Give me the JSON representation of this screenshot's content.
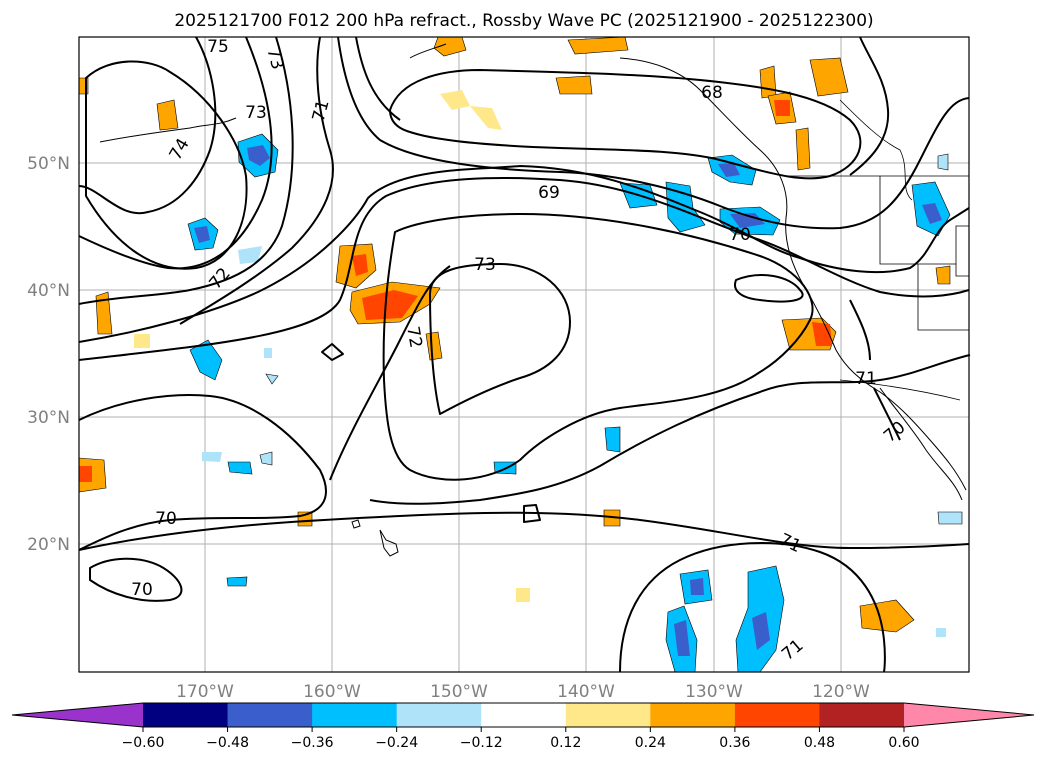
{
  "title": "2025121700 F012 200 hPa refract., Rossby Wave PC (2025121900 - 2025122300)",
  "lat_labels": [
    "50°N",
    "40°N",
    "30°N",
    "20°N"
  ],
  "lon_labels": [
    "170°W",
    "160°W",
    "150°W",
    "140°W",
    "130°W",
    "120°W"
  ],
  "contour_labels": [
    "75",
    "73",
    "74",
    "73",
    "71",
    "69",
    "68",
    "73",
    "72",
    "72",
    "70",
    "71",
    "70",
    "70",
    "71",
    "70",
    "71"
  ],
  "colorbar": {
    "ticks": [
      "−0.60",
      "−0.48",
      "−0.36",
      "−0.24",
      "−0.12",
      "0.12",
      "0.24",
      "0.36",
      "0.48",
      "0.60"
    ],
    "colors": [
      "#9933cc",
      "#000080",
      "#3a5fcd",
      "#00bfff",
      "#aee3fa",
      "#ffffff",
      "#ffe88a",
      "#ffa500",
      "#ff4500",
      "#b22222",
      "#ff88aa"
    ]
  },
  "field_colors": {
    "neg_light": "#aee3fa",
    "neg_mid": "#00bfff",
    "neg_dark": "#3a5fcd",
    "pos_light": "#ffe88a",
    "pos_mid": "#ffa500",
    "pos_dark": "#ff4500"
  }
}
